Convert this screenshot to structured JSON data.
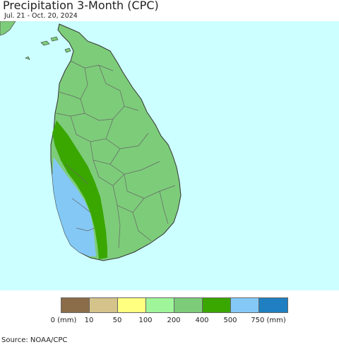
{
  "title": "Precipitation 3-Month (CPC)",
  "subtitle": "Jul. 21 - Oct. 20, 2024",
  "source": "Source: NOAA/CPC",
  "colors": {
    "ocean": "#ccffff",
    "land_200_400": "#7dcc7a",
    "land_400_500": "#3aa600",
    "land_500_750": "#84c8f5",
    "india": "#7dcc7a",
    "border": "#777777"
  },
  "legend": {
    "swatches": [
      {
        "color": "#8b6d4a"
      },
      {
        "color": "#d4c38a"
      },
      {
        "color": "#ffff80"
      },
      {
        "color": "#9ff59a"
      },
      {
        "color": "#7dcc7a"
      },
      {
        "color": "#3aa600"
      },
      {
        "color": "#84c8f5"
      },
      {
        "color": "#1f7fc0"
      }
    ],
    "labels": [
      "0 (mm)",
      "10",
      "50",
      "100",
      "200",
      "400",
      "500",
      "750 (mm)"
    ]
  }
}
